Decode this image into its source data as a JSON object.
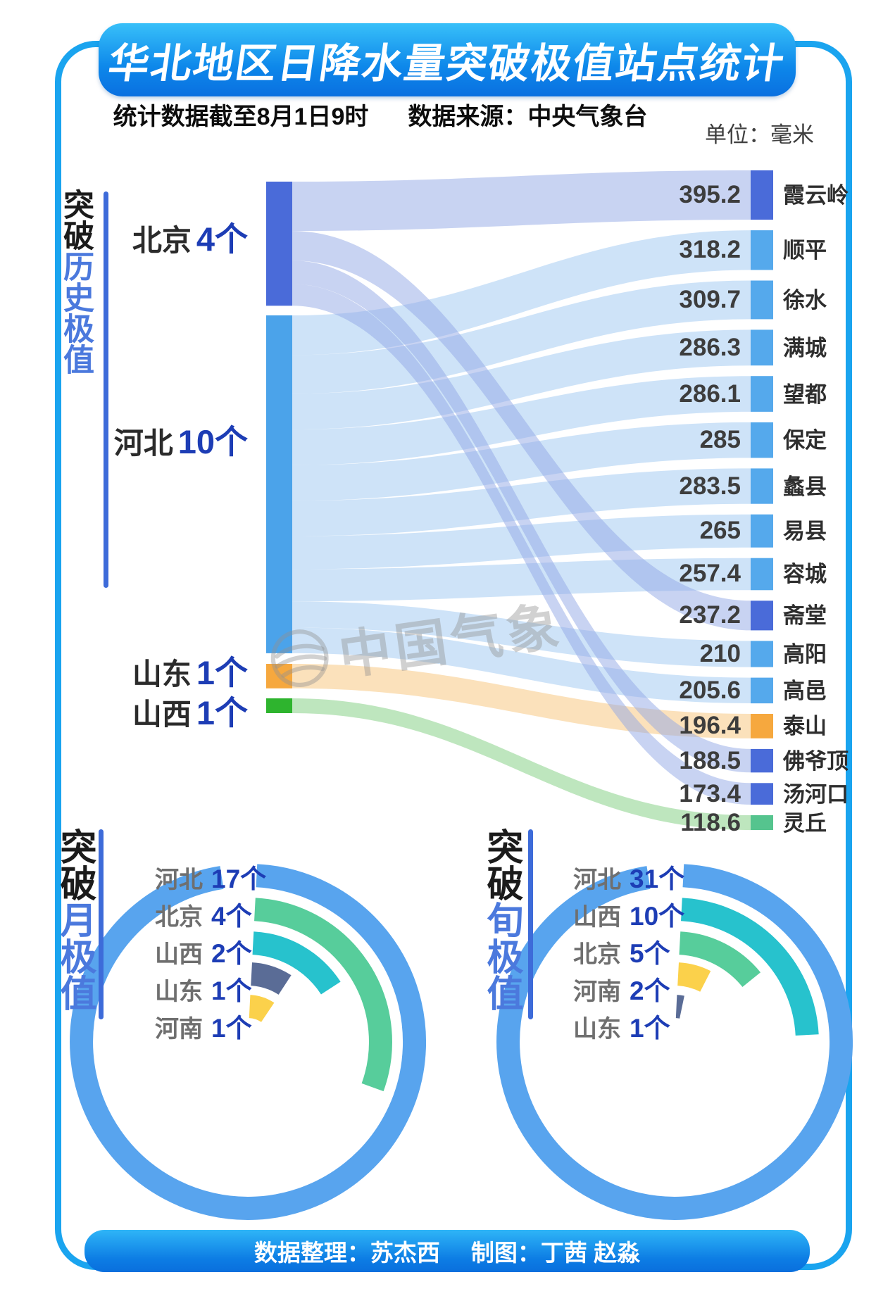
{
  "header": {
    "title": "华北地区日降水量突破极值站点统计",
    "subtitle_left": "统计数据截至8月1日9时",
    "subtitle_right": "数据来源：中央气象台",
    "unit_label": "单位：毫米"
  },
  "watermark": {
    "text": "中国气象"
  },
  "footer": {
    "credits_left": "数据整理：苏杰西",
    "credits_right": "制图：丁茜 赵淼"
  },
  "colors": {
    "accent_blue": "#3d6bd9",
    "count_blue": "#1d3db5",
    "frame_blue": "#1aa4ef"
  },
  "chart_data": [
    {
      "type": "sankey",
      "title_black": "突破",
      "title_colored": "历史极值",
      "unit": "毫米",
      "sources": [
        {
          "name": "北京",
          "count_label": "4个",
          "node_color": "#4a6bd9",
          "flow_color": "rgba(145,167,229,0.5)"
        },
        {
          "name": "河北",
          "count_label": "10个",
          "node_color": "#4ba3ea",
          "flow_color": "rgba(166,204,243,0.55)"
        },
        {
          "name": "山东",
          "count_label": "1个",
          "node_color": "#f6a83e",
          "flow_color": "rgba(247,196,120,0.5)"
        },
        {
          "name": "山西",
          "count_label": "1个",
          "node_color": "#2eb42e",
          "flow_color": "rgba(126,206,126,0.5)"
        }
      ],
      "stations": [
        {
          "name": "霞云岭",
          "value": 395.2,
          "province": "北京",
          "node_color": "#4a6bd9"
        },
        {
          "name": "顺平",
          "value": 318.2,
          "province": "河北",
          "node_color": "#55a9ec"
        },
        {
          "name": "徐水",
          "value": 309.7,
          "province": "河北",
          "node_color": "#55a9ec"
        },
        {
          "name": "满城",
          "value": 286.3,
          "province": "河北",
          "node_color": "#55a9ec"
        },
        {
          "name": "望都",
          "value": 286.1,
          "province": "河北",
          "node_color": "#55a9ec"
        },
        {
          "name": "保定",
          "value": 285,
          "province": "河北",
          "node_color": "#55a9ec"
        },
        {
          "name": "蠡县",
          "value": 283.5,
          "province": "河北",
          "node_color": "#55a9ec"
        },
        {
          "name": "易县",
          "value": 265,
          "province": "河北",
          "node_color": "#55a9ec"
        },
        {
          "name": "容城",
          "value": 257.4,
          "province": "河北",
          "node_color": "#55a9ec"
        },
        {
          "name": "斋堂",
          "value": 237.2,
          "province": "北京",
          "node_color": "#4a6bd9"
        },
        {
          "name": "高阳",
          "value": 210,
          "province": "河北",
          "node_color": "#55a9ec"
        },
        {
          "name": "高邑",
          "value": 205.6,
          "province": "河北",
          "node_color": "#55a9ec"
        },
        {
          "name": "泰山",
          "value": 196.4,
          "province": "山东",
          "node_color": "#f6a83e"
        },
        {
          "name": "佛爷顶",
          "value": 188.5,
          "province": "北京",
          "node_color": "#4a6bd9"
        },
        {
          "name": "汤河口",
          "value": 173.4,
          "province": "北京",
          "node_color": "#4a6bd9"
        },
        {
          "name": "灵丘",
          "value": 118.6,
          "province": "山西",
          "node_color": "#55c48e"
        }
      ]
    },
    {
      "type": "radial-bar",
      "title_black": "突破",
      "title_colored": "月极值",
      "items": [
        {
          "name": "河北",
          "count": 17,
          "count_label": "17个",
          "color": "#58a4ee",
          "sweep": 348
        },
        {
          "name": "北京",
          "count": 4,
          "count_label": "4个",
          "color": "#57cd9b",
          "sweep": 107
        },
        {
          "name": "山西",
          "count": 2,
          "count_label": "2个",
          "color": "#27c2cd",
          "sweep": 54
        },
        {
          "name": "山东",
          "count": 1,
          "count_label": "1个",
          "color": "#5a6c96",
          "sweep": 30
        },
        {
          "name": "河南",
          "count": 1,
          "count_label": "1个",
          "color": "#fbd14b",
          "sweep": 31
        }
      ]
    },
    {
      "type": "radial-bar",
      "title_black": "突破",
      "title_colored": "旬极值",
      "items": [
        {
          "name": "河北",
          "count": 31,
          "count_label": "31个",
          "color": "#58a4ee",
          "sweep": 348
        },
        {
          "name": "山西",
          "count": 10,
          "count_label": "10个",
          "color": "#27c2cd",
          "sweep": 84
        },
        {
          "name": "北京",
          "count": 5,
          "count_label": "5个",
          "color": "#57cd9b",
          "sweep": 48
        },
        {
          "name": "河南",
          "count": 2,
          "count_label": "2个",
          "color": "#fbd14b",
          "sweep": 24
        },
        {
          "name": "山东",
          "count": 1,
          "count_label": "1个",
          "color": "#5a6c96",
          "sweep": 9
        }
      ]
    }
  ]
}
